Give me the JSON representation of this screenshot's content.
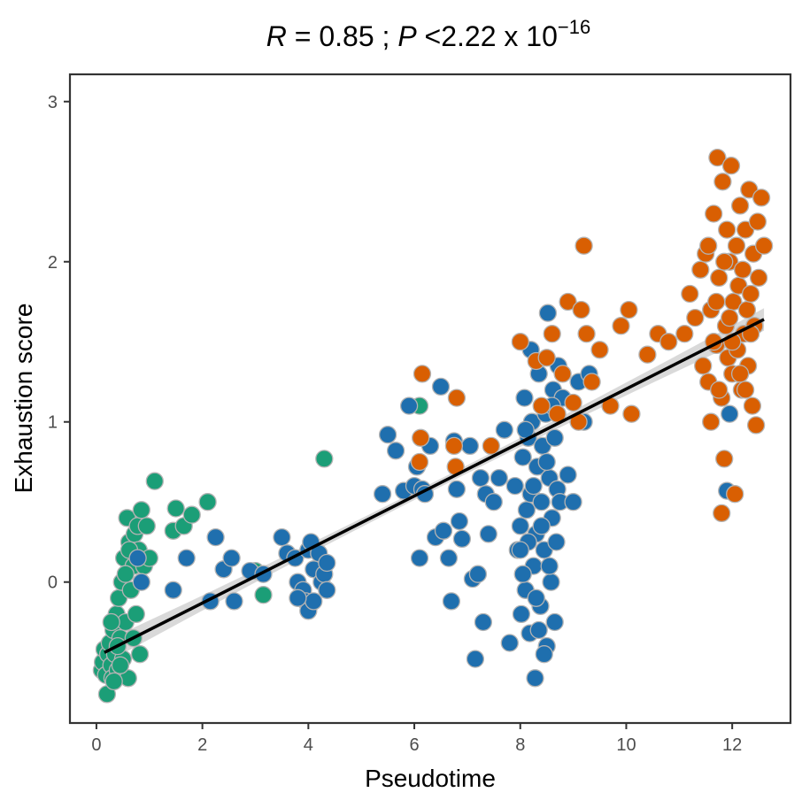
{
  "chart_data": {
    "type": "scatter",
    "title": {
      "r_symbol": "R",
      "r_value": " = 0.85 ; ",
      "p_symbol": "P",
      "p_text": " <2.22 x 10",
      "p_exponent": "−16"
    },
    "xlabel": "Pseudotime",
    "ylabel": "Exhaustion score",
    "xlim": [
      -0.5,
      13.1
    ],
    "ylim": [
      -0.88,
      3.17
    ],
    "xticks": [
      0,
      2,
      4,
      6,
      8,
      10,
      12
    ],
    "yticks": [
      0,
      1,
      2,
      3
    ],
    "xtick_labels": [
      "0",
      "2",
      "4",
      "6",
      "8",
      "10",
      "12"
    ],
    "ytick_labels": [
      "0",
      "1",
      "2",
      "3"
    ],
    "grid": false,
    "point_edge_color": "#b3b3b3",
    "regression": {
      "color": "#000000",
      "ci_color": "#cccccc",
      "x": [
        0.15,
        12.6
      ],
      "y": [
        -0.44,
        1.64
      ],
      "ci_halfwidth_ends": 0.07,
      "ci_halfwidth_center": 0.025
    },
    "series": [
      {
        "name": "green",
        "color": "#1b9e77",
        "points": [
          [
            0.1,
            -0.55
          ],
          [
            0.12,
            -0.5
          ],
          [
            0.15,
            -0.42
          ],
          [
            0.18,
            -0.58
          ],
          [
            0.2,
            -0.7
          ],
          [
            0.22,
            -0.45
          ],
          [
            0.25,
            -0.38
          ],
          [
            0.28,
            -0.52
          ],
          [
            0.3,
            -0.6
          ],
          [
            0.32,
            -0.3
          ],
          [
            0.35,
            -0.45
          ],
          [
            0.38,
            -0.2
          ],
          [
            0.4,
            -0.55
          ],
          [
            0.42,
            -0.1
          ],
          [
            0.45,
            -0.35
          ],
          [
            0.48,
            0.0
          ],
          [
            0.5,
            -0.48
          ],
          [
            0.52,
            0.15
          ],
          [
            0.55,
            -0.25
          ],
          [
            0.58,
            0.4
          ],
          [
            0.6,
            -0.6
          ],
          [
            0.62,
            0.25
          ],
          [
            0.65,
            -0.05
          ],
          [
            0.7,
            0.1
          ],
          [
            0.72,
            0.3
          ],
          [
            0.75,
            -0.2
          ],
          [
            0.78,
            0.35
          ],
          [
            0.8,
            0.2
          ],
          [
            0.82,
            -0.45
          ],
          [
            0.85,
            0.45
          ],
          [
            0.9,
            0.1
          ],
          [
            0.95,
            0.35
          ],
          [
            1.0,
            0.15
          ],
          [
            1.1,
            0.63
          ],
          [
            1.45,
            0.32
          ],
          [
            1.5,
            0.46
          ],
          [
            1.65,
            0.35
          ],
          [
            1.8,
            0.42
          ],
          [
            2.1,
            0.5
          ],
          [
            3.0,
            0.07
          ],
          [
            3.15,
            -0.08
          ],
          [
            4.3,
            0.77
          ],
          [
            6.1,
            1.1
          ],
          [
            0.28,
            -0.25
          ],
          [
            0.45,
            -0.52
          ],
          [
            0.33,
            -0.62
          ],
          [
            0.55,
            0.05
          ],
          [
            0.62,
            0.2
          ],
          [
            0.7,
            -0.35
          ],
          [
            0.4,
            -0.4
          ]
        ]
      },
      {
        "name": "blue",
        "color": "#1f6fae",
        "points": [
          [
            0.78,
            0.15
          ],
          [
            0.85,
            0.0
          ],
          [
            1.45,
            -0.05
          ],
          [
            1.7,
            0.15
          ],
          [
            2.15,
            -0.12
          ],
          [
            2.25,
            0.28
          ],
          [
            2.4,
            0.08
          ],
          [
            2.55,
            0.15
          ],
          [
            2.6,
            -0.12
          ],
          [
            2.9,
            0.07
          ],
          [
            3.15,
            0.05
          ],
          [
            3.5,
            0.28
          ],
          [
            3.6,
            0.18
          ],
          [
            3.75,
            0.15
          ],
          [
            3.8,
            0.0
          ],
          [
            3.9,
            -0.05
          ],
          [
            3.95,
            -0.12
          ],
          [
            4.0,
            0.2
          ],
          [
            4.05,
            0.25
          ],
          [
            4.1,
            0.08
          ],
          [
            4.2,
            0.18
          ],
          [
            4.25,
            0.0
          ],
          [
            4.3,
            0.05
          ],
          [
            4.35,
            0.12
          ],
          [
            4.0,
            -0.18
          ],
          [
            5.4,
            0.55
          ],
          [
            5.5,
            0.92
          ],
          [
            5.65,
            0.82
          ],
          [
            5.8,
            0.57
          ],
          [
            5.9,
            1.1
          ],
          [
            6.0,
            0.6
          ],
          [
            6.05,
            0.72
          ],
          [
            6.1,
            0.15
          ],
          [
            6.15,
            0.58
          ],
          [
            6.2,
            0.55
          ],
          [
            6.3,
            0.85
          ],
          [
            6.4,
            0.28
          ],
          [
            6.5,
            1.22
          ],
          [
            6.55,
            0.32
          ],
          [
            6.65,
            0.15
          ],
          [
            6.7,
            -0.12
          ],
          [
            6.75,
            0.88
          ],
          [
            6.8,
            0.58
          ],
          [
            6.85,
            0.38
          ],
          [
            6.9,
            0.27
          ],
          [
            7.05,
            0.85
          ],
          [
            7.1,
            0.02
          ],
          [
            7.15,
            -0.48
          ],
          [
            7.2,
            0.05
          ],
          [
            7.25,
            0.65
          ],
          [
            7.3,
            -0.25
          ],
          [
            7.35,
            0.55
          ],
          [
            7.4,
            0.3
          ],
          [
            7.5,
            0.5
          ],
          [
            7.6,
            0.65
          ],
          [
            7.7,
            0.95
          ],
          [
            7.8,
            -0.38
          ],
          [
            7.9,
            0.6
          ],
          [
            7.95,
            0.2
          ],
          [
            8.0,
            0.35
          ],
          [
            8.02,
            -0.2
          ],
          [
            8.05,
            0.78
          ],
          [
            8.08,
            1.15
          ],
          [
            8.1,
            -0.05
          ],
          [
            8.12,
            0.45
          ],
          [
            8.15,
            0.9
          ],
          [
            8.18,
            -0.32
          ],
          [
            8.2,
            0.55
          ],
          [
            8.22,
            1.0
          ],
          [
            8.25,
            0.1
          ],
          [
            8.28,
            -0.6
          ],
          [
            8.3,
            0.3
          ],
          [
            8.32,
            0.72
          ],
          [
            8.35,
            1.3
          ],
          [
            8.38,
            -0.15
          ],
          [
            8.4,
            0.5
          ],
          [
            8.42,
            0.85
          ],
          [
            8.45,
            0.2
          ],
          [
            8.48,
            1.05
          ],
          [
            8.5,
            -0.4
          ],
          [
            8.52,
            1.68
          ],
          [
            8.55,
            0.65
          ],
          [
            8.58,
            0.0
          ],
          [
            8.6,
            0.4
          ],
          [
            8.62,
            1.2
          ],
          [
            8.65,
            0.9
          ],
          [
            8.68,
            0.25
          ],
          [
            8.7,
            0.58
          ],
          [
            8.72,
            1.35
          ],
          [
            8.75,
            0.5
          ],
          [
            8.8,
            1.15
          ],
          [
            8.9,
            0.67
          ],
          [
            9.0,
            0.5
          ],
          [
            9.1,
            1.25
          ],
          [
            9.2,
            1.0
          ],
          [
            9.3,
            1.3
          ],
          [
            8.05,
            0.05
          ],
          [
            8.15,
            0.25
          ],
          [
            8.25,
            0.6
          ],
          [
            8.35,
            -0.3
          ],
          [
            8.45,
            -0.45
          ],
          [
            8.55,
            0.1
          ],
          [
            8.65,
            -0.25
          ],
          [
            8.1,
            0.95
          ],
          [
            8.2,
            1.45
          ],
          [
            8.3,
            -0.1
          ],
          [
            8.4,
            0.35
          ],
          [
            8.5,
            0.75
          ],
          [
            8.6,
            1.1
          ],
          [
            8.0,
            0.2
          ],
          [
            11.95,
            1.05
          ],
          [
            11.9,
            0.57
          ],
          [
            4.35,
            -0.05
          ],
          [
            4.1,
            -0.12
          ],
          [
            3.8,
            -0.1
          ]
        ]
      },
      {
        "name": "orange",
        "color": "#d95f02",
        "points": [
          [
            6.1,
            0.75
          ],
          [
            6.12,
            0.9
          ],
          [
            6.15,
            1.3
          ],
          [
            6.75,
            0.85
          ],
          [
            6.8,
            1.15
          ],
          [
            6.78,
            0.72
          ],
          [
            7.45,
            0.85
          ],
          [
            8.0,
            1.5
          ],
          [
            8.3,
            1.38
          ],
          [
            8.4,
            1.1
          ],
          [
            8.5,
            1.4
          ],
          [
            8.6,
            1.55
          ],
          [
            8.7,
            1.05
          ],
          [
            8.8,
            1.3
          ],
          [
            8.9,
            1.75
          ],
          [
            9.0,
            1.12
          ],
          [
            9.1,
            1.0
          ],
          [
            9.15,
            1.7
          ],
          [
            9.2,
            2.1
          ],
          [
            9.25,
            1.55
          ],
          [
            9.35,
            1.25
          ],
          [
            9.5,
            1.45
          ],
          [
            9.7,
            1.1
          ],
          [
            9.9,
            1.6
          ],
          [
            10.05,
            1.7
          ],
          [
            10.1,
            1.05
          ],
          [
            10.4,
            1.42
          ],
          [
            10.6,
            1.55
          ],
          [
            10.8,
            1.5
          ],
          [
            11.1,
            1.55
          ],
          [
            11.2,
            1.8
          ],
          [
            11.3,
            1.65
          ],
          [
            11.4,
            1.95
          ],
          [
            11.45,
            1.35
          ],
          [
            11.5,
            2.05
          ],
          [
            11.55,
            1.25
          ],
          [
            11.6,
            1.7
          ],
          [
            11.65,
            2.3
          ],
          [
            11.7,
            1.48
          ],
          [
            11.72,
            2.65
          ],
          [
            11.75,
            1.9
          ],
          [
            11.8,
            1.15
          ],
          [
            11.82,
            2.5
          ],
          [
            11.85,
            0.77
          ],
          [
            11.88,
            1.6
          ],
          [
            11.9,
            2.2
          ],
          [
            11.92,
            1.4
          ],
          [
            11.95,
            2.0
          ],
          [
            11.98,
            2.6
          ],
          [
            12.0,
            1.3
          ],
          [
            12.02,
            1.75
          ],
          [
            12.05,
            0.55
          ],
          [
            12.08,
            2.1
          ],
          [
            12.1,
            1.45
          ],
          [
            12.12,
            1.85
          ],
          [
            12.15,
            2.35
          ],
          [
            12.18,
            1.2
          ],
          [
            12.2,
            1.95
          ],
          [
            12.22,
            1.55
          ],
          [
            12.25,
            2.2
          ],
          [
            12.28,
            1.7
          ],
          [
            12.3,
            1.35
          ],
          [
            12.32,
            2.45
          ],
          [
            12.35,
            1.8
          ],
          [
            12.38,
            1.1
          ],
          [
            12.4,
            2.05
          ],
          [
            12.42,
            1.6
          ],
          [
            12.45,
            0.98
          ],
          [
            12.48,
            2.25
          ],
          [
            12.5,
            1.9
          ],
          [
            12.55,
            2.4
          ],
          [
            12.6,
            2.1
          ],
          [
            11.8,
            0.43
          ],
          [
            11.6,
            1.0
          ],
          [
            11.7,
            1.75
          ],
          [
            11.85,
            2.0
          ],
          [
            12.0,
            1.5
          ],
          [
            12.15,
            1.3
          ],
          [
            11.75,
            1.2
          ],
          [
            12.35,
            1.55
          ],
          [
            11.55,
            2.1
          ],
          [
            11.65,
            1.5
          ],
          [
            11.95,
            1.65
          ],
          [
            12.25,
            1.2
          ]
        ]
      }
    ]
  }
}
